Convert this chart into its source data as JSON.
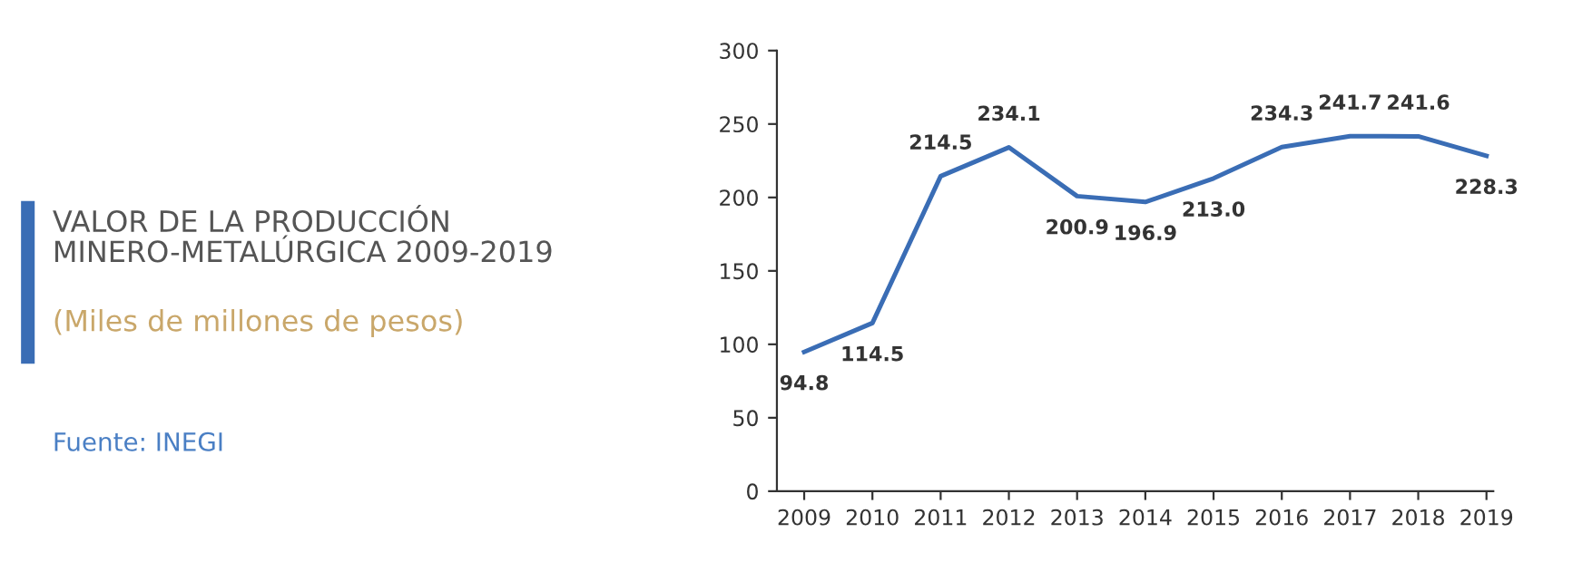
{
  "chart_data": {
    "type": "line",
    "title": "VALOR DE LA PRODUCCIÓN\nMINERO-METALÚRGICA 2009-2019",
    "subtitle": "(Miles de millones de pesos)",
    "annotations": [
      "Fuente: INEGI"
    ],
    "categories": [
      "2009",
      "2010",
      "2011",
      "2012",
      "2013",
      "2014",
      "2015",
      "2016",
      "2017",
      "2018",
      "2019"
    ],
    "series": [
      {
        "color": "#3a6db5",
        "values": [
          94.8,
          114.5,
          214.5,
          234.1,
          200.9,
          196.9,
          213.0,
          234.3,
          241.7,
          241.6,
          228.3
        ],
        "value_labels": [
          "94.8",
          "114.5",
          "214.5",
          "234.1",
          "200.9",
          "196.9",
          "213.0",
          "234.3",
          "241.7",
          "241.6",
          "228.3"
        ]
      }
    ],
    "ylim": [
      0,
      300
    ],
    "yticks": [
      0,
      50,
      100,
      150,
      200,
      250,
      300
    ],
    "marker": "none",
    "line_style": "solid"
  }
}
